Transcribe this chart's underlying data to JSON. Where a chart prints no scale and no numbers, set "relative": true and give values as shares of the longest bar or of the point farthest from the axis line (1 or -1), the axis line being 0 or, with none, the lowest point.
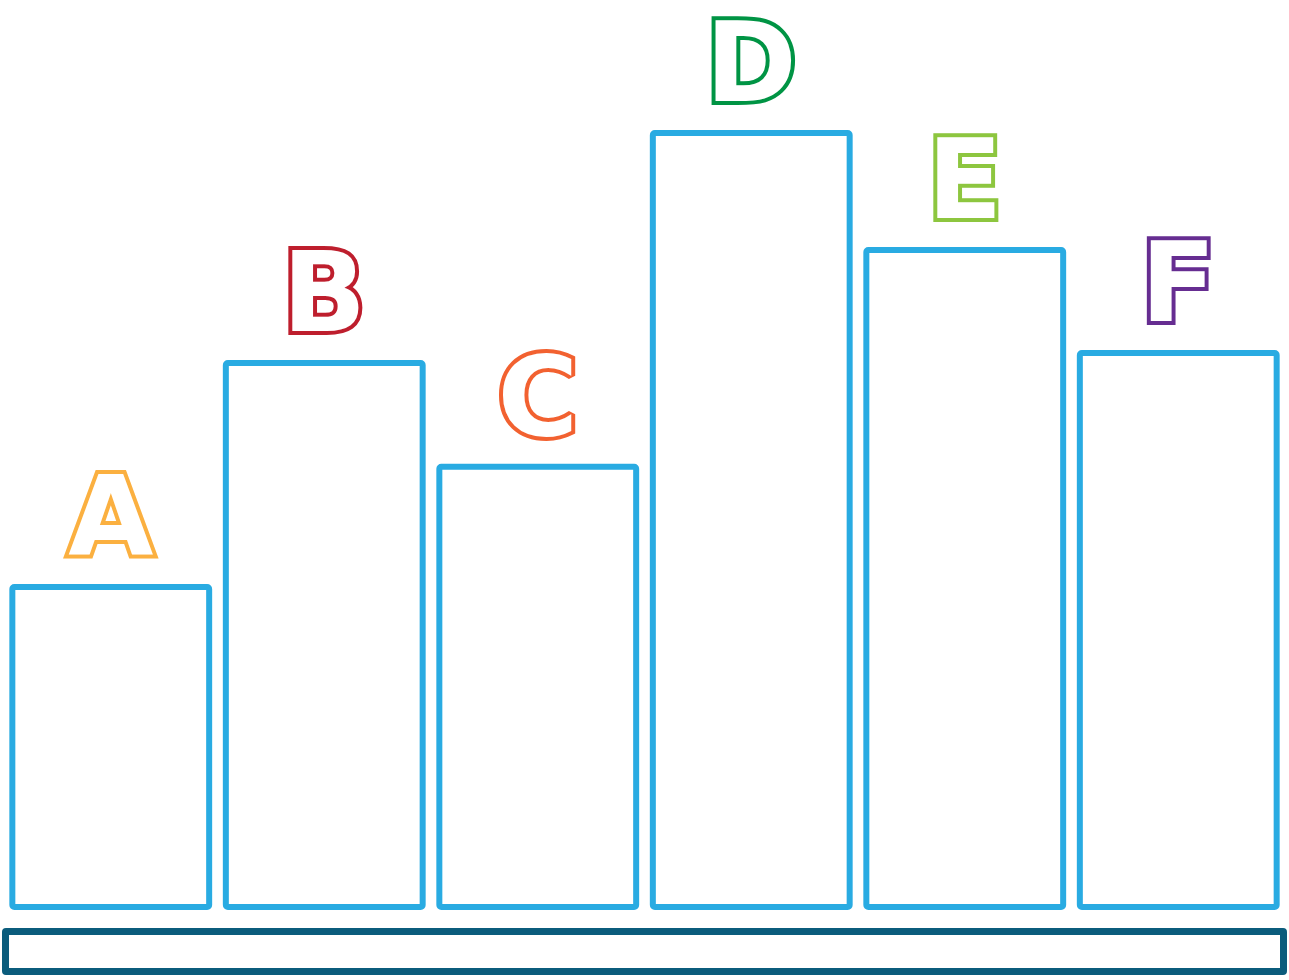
{
  "chart_data": {
    "type": "bar",
    "relative": true,
    "categories": [
      "A",
      "B",
      "C",
      "D",
      "E",
      "F"
    ],
    "values": [
      0.418,
      0.705,
      0.572,
      1,
      0.85,
      0.718
    ],
    "color": "#29abe2"
  }
}
